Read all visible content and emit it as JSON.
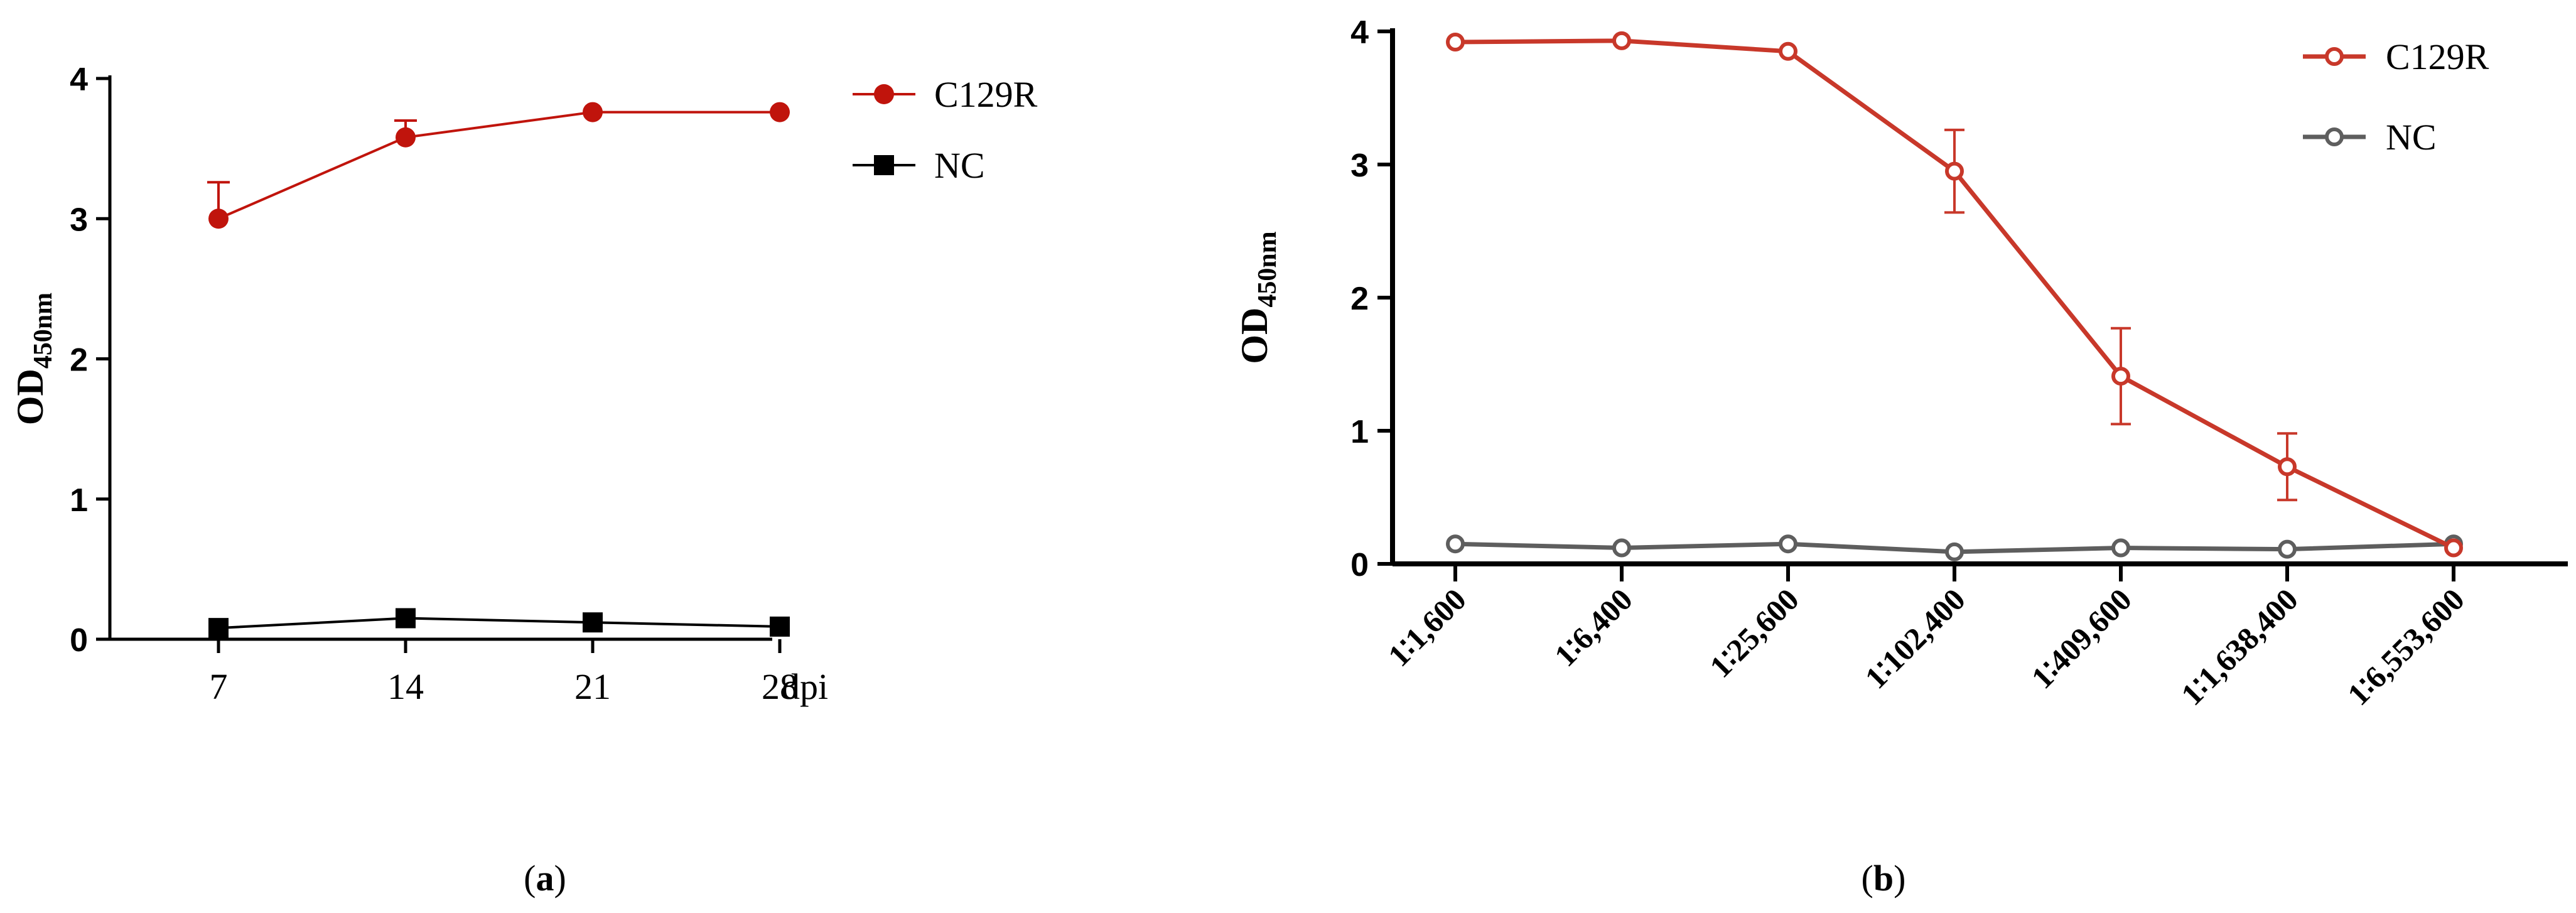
{
  "panels": {
    "a": {
      "caption_open": "(",
      "caption_letter": "a",
      "caption_close": ")"
    },
    "b": {
      "caption_open": "(",
      "caption_letter": "b",
      "caption_close": ")"
    }
  },
  "chart_data": [
    {
      "type": "line",
      "panel": "a",
      "categories": [
        "7",
        "14",
        "21",
        "28"
      ],
      "x_unit_label": "dpi",
      "ylabel_main": "OD",
      "ylabel_sub": "450nm",
      "ylim": [
        0,
        4
      ],
      "yticks": [
        0,
        1,
        2,
        3,
        4
      ],
      "grid": false,
      "legend_position": "top-right",
      "series": [
        {
          "name": "C129R",
          "color": "#c0140c",
          "marker": "circle",
          "values": [
            3.0,
            3.58,
            3.76,
            3.76
          ],
          "errors": [
            0.26,
            0.12,
            0,
            0
          ]
        },
        {
          "name": "NC",
          "color": "#000000",
          "marker": "square",
          "values": [
            0.08,
            0.15,
            0.12,
            0.09
          ],
          "errors": [
            0,
            0,
            0,
            0
          ]
        }
      ]
    },
    {
      "type": "line",
      "panel": "b",
      "categories": [
        "1∶1,600",
        "1∶6,400",
        "1∶25,600",
        "1∶102,400",
        "1∶409,600",
        "1∶1,638,400",
        "1∶6,553,600"
      ],
      "ylabel_main": "OD",
      "ylabel_sub": "450nm",
      "ylim": [
        0,
        4
      ],
      "yticks": [
        0,
        1,
        2,
        3,
        4
      ],
      "grid": false,
      "legend_position": "top-right",
      "series": [
        {
          "name": "C129R",
          "color": "#c8382a",
          "marker": "open-circle",
          "values": [
            3.92,
            3.93,
            3.85,
            2.95,
            1.41,
            0.73,
            0.12
          ],
          "errors": [
            0,
            0,
            0,
            0.31,
            0.36,
            0.25,
            0
          ]
        },
        {
          "name": "NC",
          "color": "#5e5e5e",
          "marker": "open-circle",
          "values": [
            0.15,
            0.12,
            0.15,
            0.09,
            0.12,
            0.11,
            0.15
          ],
          "errors": [
            0,
            0,
            0,
            0,
            0,
            0,
            0
          ]
        }
      ]
    }
  ]
}
